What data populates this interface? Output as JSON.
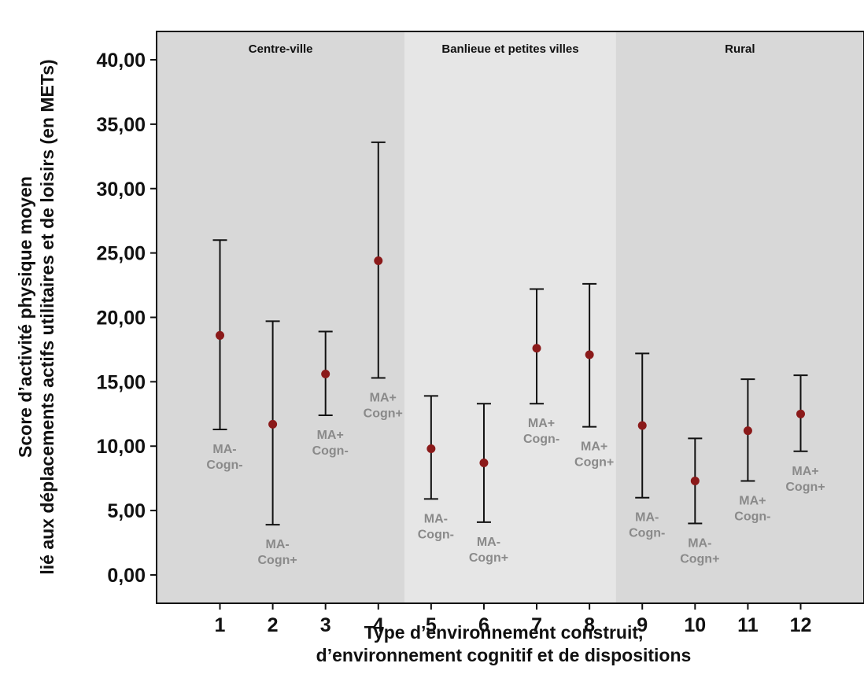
{
  "chart_data": {
    "type": "scatter",
    "subtype": "point-with-error-bars",
    "title": "",
    "xlabel": [
      "Type d’environnement construit,",
      "d’environnement cognitif et de dispositions"
    ],
    "ylabel": [
      "Score d’activité physique moyen",
      "lié aux déplacements actifs utilitaires et de loisirs (en METs)"
    ],
    "ylim": [
      -2.2,
      42.2
    ],
    "yticks": [
      0,
      5,
      10,
      15,
      20,
      25,
      30,
      35,
      40
    ],
    "ytick_labels": [
      "0,00",
      "5,00",
      "10,00",
      "15,00",
      "20,00",
      "25,00",
      "30,00",
      "35,00",
      "40,00"
    ],
    "xlim": [
      -0.2,
      13.2
    ],
    "grid": false,
    "legend": "none",
    "regions": [
      {
        "label": "Centre-ville",
        "x_start": -0.2,
        "x_end": 4.5,
        "color": "#d8d8d8"
      },
      {
        "label": "Banlieue et petites villes",
        "x_start": 4.5,
        "x_end": 8.5,
        "color": "#e6e6e6"
      },
      {
        "label": "Rural",
        "x_start": 8.5,
        "x_end": 13.2,
        "color": "#d8d8d8"
      }
    ],
    "points": [
      {
        "x": 1,
        "tick_label": "1",
        "mean": 18.6,
        "low": 11.3,
        "high": 26.0,
        "label": [
          "MA-",
          "Cogn-"
        ]
      },
      {
        "x": 2,
        "tick_label": "2",
        "mean": 11.7,
        "low": 3.9,
        "high": 19.7,
        "label": [
          "MA-",
          "Cogn+"
        ]
      },
      {
        "x": 3,
        "tick_label": "3",
        "mean": 15.6,
        "low": 12.4,
        "high": 18.9,
        "label": [
          "MA+",
          "Cogn-"
        ]
      },
      {
        "x": 4,
        "tick_label": "4",
        "mean": 24.4,
        "low": 15.3,
        "high": 33.6,
        "label": [
          "MA+",
          "Cogn+"
        ]
      },
      {
        "x": 5,
        "tick_label": "5",
        "mean": 9.8,
        "low": 5.9,
        "high": 13.9,
        "label": [
          "MA-",
          "Cogn-"
        ]
      },
      {
        "x": 6,
        "tick_label": "6",
        "mean": 8.7,
        "low": 4.1,
        "high": 13.3,
        "label": [
          "MA-",
          "Cogn+"
        ]
      },
      {
        "x": 7,
        "tick_label": "7",
        "mean": 17.6,
        "low": 13.3,
        "high": 22.2,
        "label": [
          "MA+",
          "Cogn-"
        ]
      },
      {
        "x": 8,
        "tick_label": "8",
        "mean": 17.1,
        "low": 11.5,
        "high": 22.6,
        "label": [
          "MA+",
          "Cogn+"
        ]
      },
      {
        "x": 9,
        "tick_label": "9",
        "mean": 11.6,
        "low": 6.0,
        "high": 17.2,
        "label": [
          "MA-",
          "Cogn-"
        ]
      },
      {
        "x": 10,
        "tick_label": "10",
        "mean": 7.3,
        "low": 4.0,
        "high": 10.6,
        "label": [
          "MA-",
          "Cogn+"
        ]
      },
      {
        "x": 11,
        "tick_label": "11",
        "mean": 11.2,
        "low": 7.3,
        "high": 15.2,
        "label": [
          "MA+",
          "Cogn-"
        ]
      },
      {
        "x": 12,
        "tick_label": "12",
        "mean": 12.5,
        "low": 9.6,
        "high": 15.5,
        "label": [
          "MA+",
          "Cogn+"
        ]
      }
    ],
    "colors": {
      "point": "#8b1a1a",
      "error_bar": "#111111",
      "point_label": "#8a8a8a"
    }
  }
}
